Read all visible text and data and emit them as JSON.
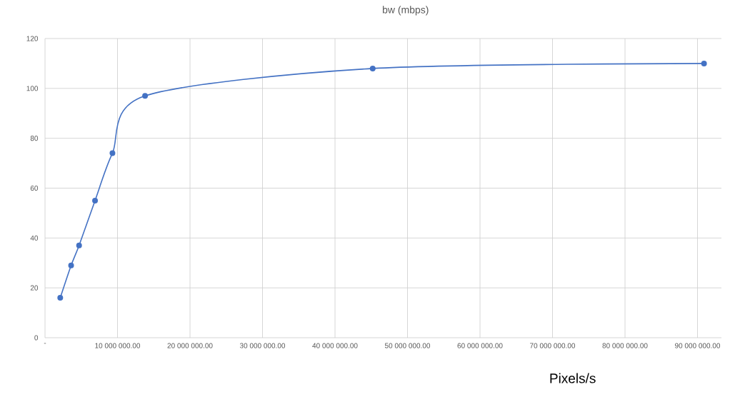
{
  "chart_data": {
    "type": "line",
    "title": "bw (mbps)",
    "xlabel": "Pixels/s",
    "x": [
      2100000,
      3600000,
      4700000,
      6900000,
      9300000,
      13800000,
      45200000,
      90900000
    ],
    "series": [
      {
        "color": "#4472c4",
        "values": [
          16,
          29,
          37,
          55,
          74,
          97,
          108,
          110
        ]
      }
    ],
    "xlim": [
      0,
      93300000
    ],
    "ylim": [
      0,
      120
    ],
    "xticks": [
      {
        "value": 0,
        "label": "-"
      },
      {
        "value": 10000000,
        "label": "10 000 000.00"
      },
      {
        "value": 20000000,
        "label": "20 000 000.00"
      },
      {
        "value": 30000000,
        "label": "30 000 000.00"
      },
      {
        "value": 40000000,
        "label": "40 000 000.00"
      },
      {
        "value": 50000000,
        "label": "50 000 000.00"
      },
      {
        "value": 60000000,
        "label": "60 000 000.00"
      },
      {
        "value": 70000000,
        "label": "70 000 000.00"
      },
      {
        "value": 80000000,
        "label": "80 000 000.00"
      },
      {
        "value": 90000000,
        "label": "90 000 000.00"
      }
    ],
    "yticks": [
      0,
      20,
      40,
      60,
      80,
      100,
      120
    ],
    "grid": true,
    "marker": "circle",
    "line_style": "solid"
  }
}
